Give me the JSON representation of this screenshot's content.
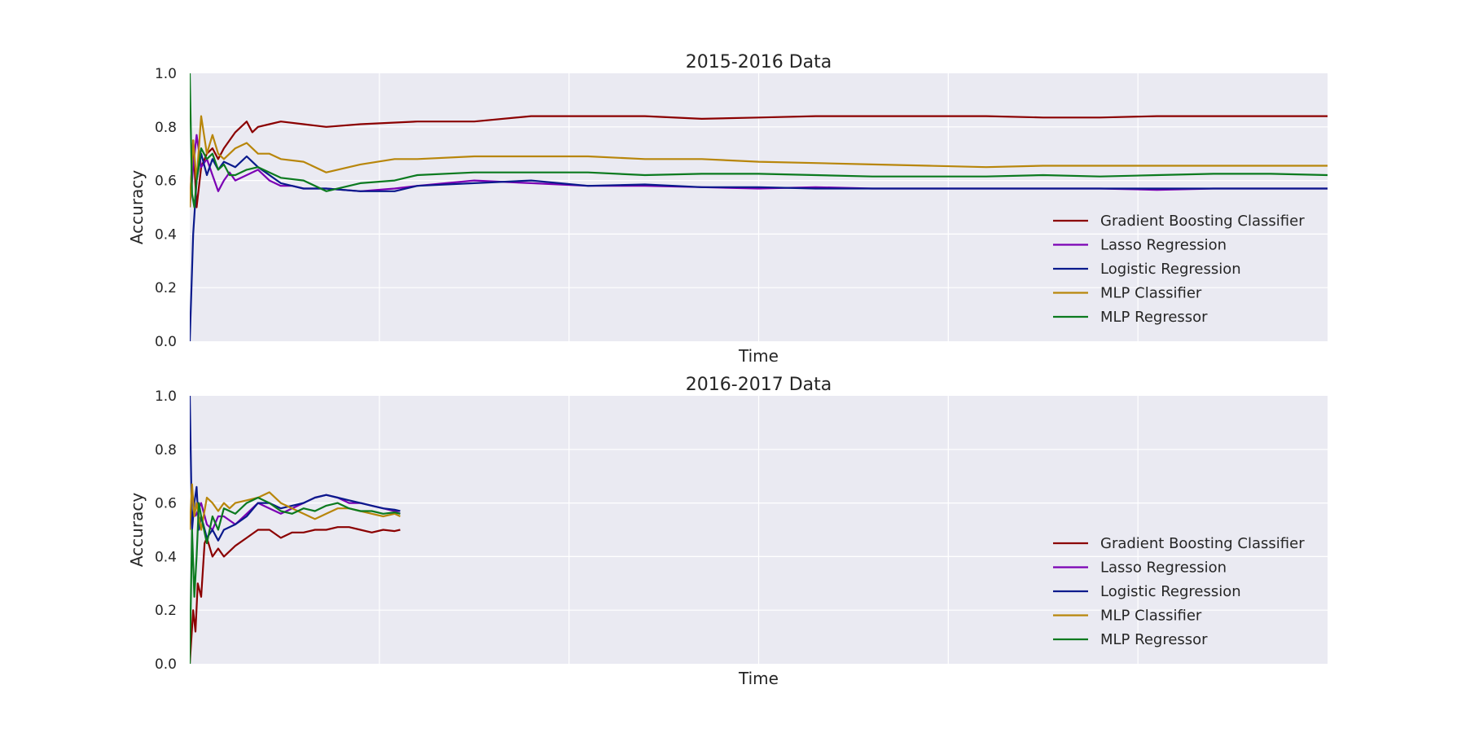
{
  "figure": {
    "background": "#ffffff",
    "plot_background": "#eaeaf2",
    "grid_color": "#ffffff"
  },
  "chart_data": [
    {
      "type": "line",
      "title": "2015-2016 Data",
      "xlabel": "Time",
      "ylabel": "Accuracy",
      "ylim": [
        0,
        1
      ],
      "xlim": [
        0,
        1
      ],
      "yticks": [
        "0.0",
        "0.2",
        "0.4",
        "0.6",
        "0.8",
        "1.0"
      ],
      "grid": true,
      "legend_position": "lower-right",
      "series": [
        {
          "name": "Gradient Boosting Classifier",
          "color": "#8b0000",
          "x": [
            0,
            0.003,
            0.006,
            0.01,
            0.015,
            0.02,
            0.025,
            0.03,
            0.04,
            0.05,
            0.055,
            0.06,
            0.07,
            0.08,
            0.1,
            0.12,
            0.15,
            0.2,
            0.25,
            0.3,
            0.35,
            0.4,
            0.45,
            0.5,
            0.55,
            0.6,
            0.65,
            0.7,
            0.75,
            0.8,
            0.85,
            0.9,
            0.95,
            1.0
          ],
          "y": [
            0.5,
            0.75,
            0.5,
            0.65,
            0.7,
            0.72,
            0.68,
            0.72,
            0.78,
            0.82,
            0.78,
            0.8,
            0.81,
            0.82,
            0.81,
            0.8,
            0.81,
            0.82,
            0.82,
            0.84,
            0.84,
            0.84,
            0.83,
            0.835,
            0.84,
            0.84,
            0.84,
            0.84,
            0.835,
            0.835,
            0.84,
            0.84,
            0.84,
            0.84
          ]
        },
        {
          "name": "Lasso Regression",
          "color": "#7b00b4",
          "x": [
            0,
            0.003,
            0.006,
            0.01,
            0.015,
            0.02,
            0.025,
            0.03,
            0.035,
            0.04,
            0.05,
            0.06,
            0.07,
            0.08,
            0.09,
            0.1,
            0.12,
            0.15,
            0.18,
            0.2,
            0.25,
            0.3,
            0.35,
            0.4,
            0.45,
            0.5,
            0.55,
            0.6,
            0.65,
            0.7,
            0.75,
            0.8,
            0.85,
            0.9,
            0.95,
            1.0
          ],
          "y": [
            0.5,
            0.65,
            0.77,
            0.65,
            0.68,
            0.62,
            0.56,
            0.6,
            0.63,
            0.6,
            0.62,
            0.64,
            0.6,
            0.58,
            0.58,
            0.57,
            0.57,
            0.56,
            0.57,
            0.58,
            0.6,
            0.59,
            0.58,
            0.58,
            0.575,
            0.57,
            0.575,
            0.57,
            0.57,
            0.57,
            0.57,
            0.57,
            0.565,
            0.57,
            0.57,
            0.57
          ]
        },
        {
          "name": "Logistic Regression",
          "color": "#0a1a8c",
          "x": [
            0,
            0.003,
            0.006,
            0.01,
            0.015,
            0.02,
            0.025,
            0.03,
            0.035,
            0.04,
            0.05,
            0.055,
            0.06,
            0.07,
            0.08,
            0.09,
            0.1,
            0.12,
            0.15,
            0.18,
            0.2,
            0.25,
            0.3,
            0.35,
            0.4,
            0.45,
            0.5,
            0.55,
            0.6,
            0.65,
            0.7,
            0.75,
            0.8,
            0.85,
            0.9,
            0.95,
            1.0
          ],
          "y": [
            0.0,
            0.4,
            0.6,
            0.7,
            0.62,
            0.68,
            0.64,
            0.67,
            0.66,
            0.65,
            0.69,
            0.67,
            0.65,
            0.62,
            0.59,
            0.58,
            0.57,
            0.57,
            0.56,
            0.56,
            0.58,
            0.59,
            0.6,
            0.58,
            0.585,
            0.575,
            0.575,
            0.57,
            0.57,
            0.57,
            0.57,
            0.57,
            0.57,
            0.57,
            0.57,
            0.57,
            0.57
          ]
        },
        {
          "name": "MLP Classifier",
          "color": "#b8860b",
          "x": [
            0,
            0.003,
            0.006,
            0.01,
            0.015,
            0.02,
            0.025,
            0.03,
            0.035,
            0.04,
            0.05,
            0.055,
            0.06,
            0.07,
            0.08,
            0.1,
            0.12,
            0.15,
            0.18,
            0.2,
            0.25,
            0.3,
            0.35,
            0.4,
            0.45,
            0.5,
            0.55,
            0.6,
            0.65,
            0.7,
            0.75,
            0.8,
            0.85,
            0.9,
            0.95,
            1.0
          ],
          "y": [
            0.5,
            0.75,
            0.6,
            0.84,
            0.7,
            0.77,
            0.7,
            0.68,
            0.7,
            0.72,
            0.74,
            0.72,
            0.7,
            0.7,
            0.68,
            0.67,
            0.63,
            0.66,
            0.68,
            0.68,
            0.69,
            0.69,
            0.69,
            0.68,
            0.68,
            0.67,
            0.665,
            0.66,
            0.655,
            0.65,
            0.655,
            0.655,
            0.655,
            0.655,
            0.655,
            0.655
          ]
        },
        {
          "name": "MLP Regressor",
          "color": "#0b7a1f",
          "x": [
            0,
            0.002,
            0.004,
            0.006,
            0.01,
            0.015,
            0.02,
            0.025,
            0.03,
            0.035,
            0.04,
            0.05,
            0.06,
            0.07,
            0.08,
            0.1,
            0.12,
            0.15,
            0.18,
            0.2,
            0.25,
            0.3,
            0.35,
            0.4,
            0.45,
            0.5,
            0.55,
            0.6,
            0.65,
            0.7,
            0.75,
            0.8,
            0.85,
            0.9,
            0.95,
            1.0
          ],
          "y": [
            1.0,
            0.55,
            0.5,
            0.6,
            0.72,
            0.68,
            0.7,
            0.64,
            0.66,
            0.62,
            0.62,
            0.64,
            0.65,
            0.63,
            0.61,
            0.6,
            0.56,
            0.59,
            0.6,
            0.62,
            0.63,
            0.63,
            0.63,
            0.62,
            0.625,
            0.625,
            0.62,
            0.615,
            0.615,
            0.615,
            0.62,
            0.615,
            0.62,
            0.625,
            0.625,
            0.62
          ]
        }
      ]
    },
    {
      "type": "line",
      "title": "2016-2017 Data",
      "xlabel": "Time",
      "ylabel": "Accuracy",
      "ylim": [
        0,
        1
      ],
      "xlim": [
        0,
        1
      ],
      "yticks": [
        "0.0",
        "0.2",
        "0.4",
        "0.6",
        "0.8",
        "1.0"
      ],
      "grid": true,
      "legend_position": "lower-right",
      "series": [
        {
          "name": "Gradient Boosting Classifier",
          "color": "#8b0000",
          "x": [
            0,
            0.003,
            0.005,
            0.007,
            0.01,
            0.013,
            0.015,
            0.02,
            0.025,
            0.03,
            0.04,
            0.05,
            0.06,
            0.07,
            0.08,
            0.09,
            0.1,
            0.11,
            0.12,
            0.13,
            0.14,
            0.15,
            0.16,
            0.17,
            0.18,
            0.185
          ],
          "y": [
            0.0,
            0.2,
            0.12,
            0.3,
            0.25,
            0.45,
            0.47,
            0.4,
            0.43,
            0.4,
            0.44,
            0.47,
            0.5,
            0.5,
            0.47,
            0.49,
            0.49,
            0.5,
            0.5,
            0.51,
            0.51,
            0.5,
            0.49,
            0.5,
            0.495,
            0.5
          ]
        },
        {
          "name": "Lasso Regression",
          "color": "#7b00b4",
          "x": [
            0.005,
            0.01,
            0.015,
            0.02,
            0.025,
            0.03,
            0.04,
            0.05,
            0.06,
            0.07,
            0.08,
            0.09,
            0.1,
            0.11,
            0.12,
            0.13,
            0.14,
            0.15,
            0.16,
            0.17,
            0.18,
            0.185
          ],
          "y": [
            0.55,
            0.6,
            0.52,
            0.5,
            0.55,
            0.55,
            0.52,
            0.56,
            0.6,
            0.58,
            0.56,
            0.58,
            0.6,
            0.62,
            0.63,
            0.62,
            0.6,
            0.6,
            0.59,
            0.58,
            0.57,
            0.56
          ]
        },
        {
          "name": "Logistic Regression",
          "color": "#0a1a8c",
          "x": [
            0,
            0.002,
            0.004,
            0.006,
            0.008,
            0.01,
            0.015,
            0.02,
            0.025,
            0.03,
            0.04,
            0.05,
            0.06,
            0.07,
            0.08,
            0.09,
            0.1,
            0.11,
            0.12,
            0.13,
            0.14,
            0.15,
            0.16,
            0.17,
            0.18,
            0.185
          ],
          "y": [
            1.0,
            0.5,
            0.6,
            0.66,
            0.5,
            0.55,
            0.47,
            0.5,
            0.46,
            0.5,
            0.52,
            0.55,
            0.6,
            0.6,
            0.58,
            0.59,
            0.6,
            0.62,
            0.63,
            0.62,
            0.61,
            0.6,
            0.59,
            0.58,
            0.575,
            0.57
          ]
        },
        {
          "name": "MLP Classifier",
          "color": "#b8860b",
          "x": [
            0,
            0.002,
            0.004,
            0.006,
            0.01,
            0.015,
            0.02,
            0.025,
            0.03,
            0.035,
            0.04,
            0.05,
            0.06,
            0.07,
            0.08,
            0.09,
            0.1,
            0.11,
            0.12,
            0.13,
            0.14,
            0.15,
            0.16,
            0.17,
            0.18,
            0.185
          ],
          "y": [
            0.5,
            0.67,
            0.55,
            0.6,
            0.5,
            0.62,
            0.6,
            0.57,
            0.6,
            0.58,
            0.6,
            0.61,
            0.62,
            0.64,
            0.6,
            0.58,
            0.56,
            0.54,
            0.56,
            0.58,
            0.58,
            0.57,
            0.56,
            0.55,
            0.56,
            0.55
          ]
        },
        {
          "name": "MLP Regressor",
          "color": "#0b7a1f",
          "x": [
            0,
            0.002,
            0.004,
            0.006,
            0.008,
            0.01,
            0.015,
            0.02,
            0.025,
            0.03,
            0.04,
            0.05,
            0.06,
            0.07,
            0.08,
            0.09,
            0.1,
            0.11,
            0.12,
            0.13,
            0.14,
            0.15,
            0.16,
            0.17,
            0.18,
            0.185
          ],
          "y": [
            0.0,
            0.5,
            0.25,
            0.4,
            0.6,
            0.55,
            0.45,
            0.55,
            0.5,
            0.58,
            0.56,
            0.6,
            0.62,
            0.6,
            0.57,
            0.56,
            0.58,
            0.57,
            0.59,
            0.6,
            0.58,
            0.57,
            0.57,
            0.56,
            0.565,
            0.56
          ]
        }
      ]
    }
  ]
}
